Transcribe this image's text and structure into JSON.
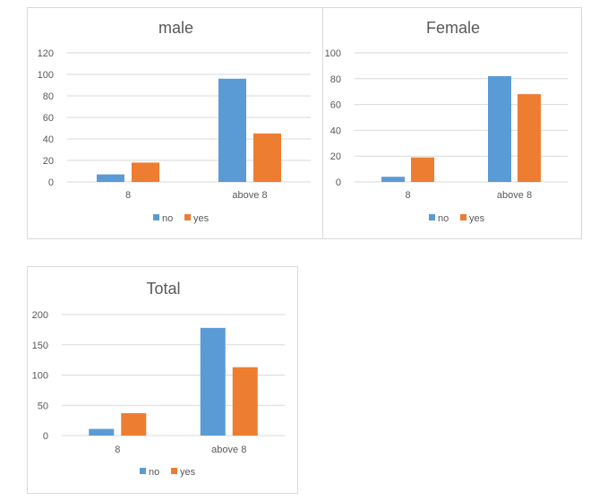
{
  "colors": {
    "no": "#5b9bd5",
    "yes": "#ed7d31",
    "grid": "#d9d9d9",
    "text": "#595959"
  },
  "chart_data": [
    {
      "type": "bar",
      "title": "male",
      "categories": [
        "8",
        "above 8"
      ],
      "series": [
        {
          "name": "no",
          "values": [
            7,
            96
          ]
        },
        {
          "name": "yes",
          "values": [
            18,
            45
          ]
        }
      ],
      "ylim": [
        0,
        120
      ],
      "yticks": [
        0,
        20,
        40,
        60,
        80,
        100,
        120
      ],
      "grid": true,
      "legend": "bottom"
    },
    {
      "type": "bar",
      "title": "Female",
      "categories": [
        "8",
        "above 8"
      ],
      "series": [
        {
          "name": "no",
          "values": [
            4,
            82
          ]
        },
        {
          "name": "yes",
          "values": [
            19,
            68
          ]
        }
      ],
      "ylim": [
        0,
        100
      ],
      "yticks": [
        0,
        20,
        40,
        60,
        80,
        100
      ],
      "grid": true,
      "legend": "bottom"
    },
    {
      "type": "bar",
      "title": "Total",
      "categories": [
        "8",
        "above 8"
      ],
      "series": [
        {
          "name": "no",
          "values": [
            11,
            178
          ]
        },
        {
          "name": "yes",
          "values": [
            37,
            113
          ]
        }
      ],
      "ylim": [
        0,
        200
      ],
      "yticks": [
        0,
        50,
        100,
        150,
        200
      ],
      "grid": true,
      "legend": "bottom"
    }
  ]
}
